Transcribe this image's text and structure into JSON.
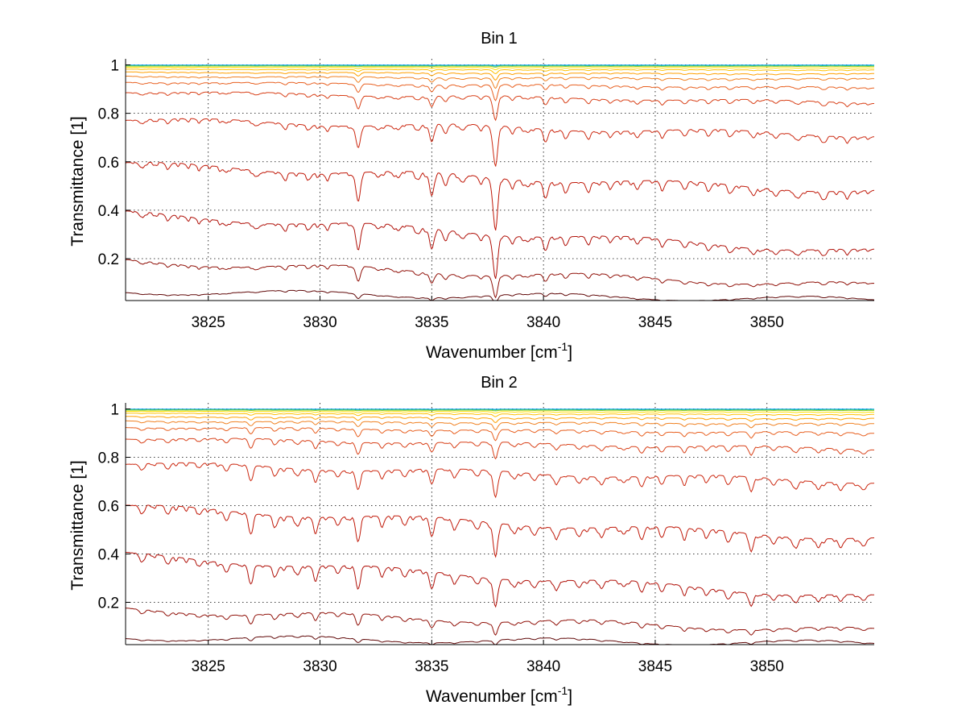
{
  "chart_data": [
    {
      "type": "line",
      "title": "Bin 1",
      "xlabel": "Wavenumber [cm",
      "xlabel_sup": "-1",
      "xlabel_close": "]",
      "ylabel": "Transmittance [1]",
      "xlim": [
        3821.3,
        3854.8
      ],
      "ylim": [
        0.027,
        1.025
      ],
      "xticks": [
        3825,
        3830,
        3835,
        3840,
        3845,
        3850
      ],
      "yticks": [
        0.2,
        0.4,
        0.6,
        0.8,
        1
      ],
      "xtick_labels": [
        "3825",
        "3830",
        "3835",
        "3840",
        "3845",
        "3850"
      ],
      "ytick_labels": [
        "0.2",
        "0.4",
        "0.6",
        "0.8",
        "1"
      ],
      "grid": true,
      "legend": "none",
      "dips": [
        {
          "x": 3822.0,
          "d": 0.06
        },
        {
          "x": 3823.2,
          "d": 0.07
        },
        {
          "x": 3824.6,
          "d": 0.05
        },
        {
          "x": 3825.8,
          "d": 0.06
        },
        {
          "x": 3827.2,
          "d": 0.07
        },
        {
          "x": 3828.4,
          "d": 0.06
        },
        {
          "x": 3829.5,
          "d": 0.08
        },
        {
          "x": 3830.3,
          "d": 0.06
        },
        {
          "x": 3831.7,
          "d": 0.35
        },
        {
          "x": 3832.6,
          "d": 0.07
        },
        {
          "x": 3833.5,
          "d": 0.08
        },
        {
          "x": 3834.4,
          "d": 0.1
        },
        {
          "x": 3835.0,
          "d": 0.3
        },
        {
          "x": 3835.6,
          "d": 0.15
        },
        {
          "x": 3836.4,
          "d": 0.1
        },
        {
          "x": 3837.2,
          "d": 0.08
        },
        {
          "x": 3837.85,
          "d": 0.7
        },
        {
          "x": 3838.6,
          "d": 0.1
        },
        {
          "x": 3839.3,
          "d": 0.08
        },
        {
          "x": 3840.1,
          "d": 0.22
        },
        {
          "x": 3841.0,
          "d": 0.12
        },
        {
          "x": 3842.0,
          "d": 0.1
        },
        {
          "x": 3843.0,
          "d": 0.09
        },
        {
          "x": 3844.2,
          "d": 0.12
        },
        {
          "x": 3845.3,
          "d": 0.1
        },
        {
          "x": 3846.3,
          "d": 0.1
        },
        {
          "x": 3847.4,
          "d": 0.11
        },
        {
          "x": 3848.4,
          "d": 0.1
        },
        {
          "x": 3849.4,
          "d": 0.12
        },
        {
          "x": 3850.4,
          "d": 0.1
        },
        {
          "x": 3851.4,
          "d": 0.11
        },
        {
          "x": 3852.5,
          "d": 0.12
        },
        {
          "x": 3853.6,
          "d": 0.1
        }
      ],
      "series": [
        {
          "color": "#00a0ff",
          "start": 0.999,
          "end": 0.999
        },
        {
          "color": "#20c0a0",
          "start": 0.997,
          "end": 0.997
        },
        {
          "color": "#a0d020",
          "start": 0.995,
          "end": 0.994
        },
        {
          "color": "#ffe000",
          "start": 0.99,
          "end": 0.988
        },
        {
          "color": "#ffc000",
          "start": 0.982,
          "end": 0.979
        },
        {
          "color": "#ffa000",
          "start": 0.97,
          "end": 0.963
        },
        {
          "color": "#f08020",
          "start": 0.953,
          "end": 0.942
        },
        {
          "color": "#e86020",
          "start": 0.93,
          "end": 0.905
        },
        {
          "color": "#d84018",
          "start": 0.89,
          "end": 0.845
        },
        {
          "color": "#cc2810",
          "start": 0.775,
          "end": 0.71
        },
        {
          "color": "#c01808",
          "start": 0.59,
          "end": 0.48
        },
        {
          "color": "#b01008",
          "start": 0.385,
          "end": 0.228
        },
        {
          "color": "#901008",
          "start": 0.19,
          "end": 0.088
        },
        {
          "color": "#600808",
          "start": 0.065,
          "end": 0.03
        }
      ]
    },
    {
      "type": "line",
      "title": "Bin 2",
      "xlabel": "Wavenumber [cm",
      "xlabel_sup": "-1",
      "xlabel_close": "]",
      "ylabel": "Transmittance [1]",
      "xlim": [
        3821.3,
        3854.8
      ],
      "ylim": [
        0.025,
        1.025
      ],
      "xticks": [
        3825,
        3830,
        3835,
        3840,
        3845,
        3850
      ],
      "yticks": [
        0.2,
        0.4,
        0.6,
        0.8,
        1
      ],
      "xtick_labels": [
        "3825",
        "3830",
        "3835",
        "3840",
        "3845",
        "3850"
      ],
      "ytick_labels": [
        "0.2",
        "0.4",
        "0.6",
        "0.8",
        "1"
      ],
      "grid": true,
      "legend": "none",
      "dips": [
        {
          "x": 3822.0,
          "d": 0.08
        },
        {
          "x": 3823.2,
          "d": 0.1
        },
        {
          "x": 3824.6,
          "d": 0.08
        },
        {
          "x": 3825.8,
          "d": 0.12
        },
        {
          "x": 3826.9,
          "d": 0.22
        },
        {
          "x": 3828.0,
          "d": 0.14
        },
        {
          "x": 3829.0,
          "d": 0.12
        },
        {
          "x": 3829.8,
          "d": 0.16
        },
        {
          "x": 3830.8,
          "d": 0.1
        },
        {
          "x": 3831.7,
          "d": 0.3
        },
        {
          "x": 3832.8,
          "d": 0.1
        },
        {
          "x": 3833.8,
          "d": 0.12
        },
        {
          "x": 3835.0,
          "d": 0.25
        },
        {
          "x": 3836.0,
          "d": 0.12
        },
        {
          "x": 3837.0,
          "d": 0.1
        },
        {
          "x": 3837.85,
          "d": 0.45
        },
        {
          "x": 3838.7,
          "d": 0.12
        },
        {
          "x": 3839.6,
          "d": 0.12
        },
        {
          "x": 3840.6,
          "d": 0.14
        },
        {
          "x": 3841.6,
          "d": 0.12
        },
        {
          "x": 3842.6,
          "d": 0.14
        },
        {
          "x": 3843.6,
          "d": 0.1
        },
        {
          "x": 3844.4,
          "d": 0.18
        },
        {
          "x": 3845.3,
          "d": 0.12
        },
        {
          "x": 3846.3,
          "d": 0.14
        },
        {
          "x": 3847.3,
          "d": 0.12
        },
        {
          "x": 3848.3,
          "d": 0.14
        },
        {
          "x": 3849.3,
          "d": 0.25
        },
        {
          "x": 3850.3,
          "d": 0.12
        },
        {
          "x": 3851.3,
          "d": 0.16
        },
        {
          "x": 3852.3,
          "d": 0.14
        },
        {
          "x": 3853.3,
          "d": 0.14
        },
        {
          "x": 3854.3,
          "d": 0.12
        }
      ],
      "series": [
        {
          "color": "#00a0ff",
          "start": 0.999,
          "end": 0.999
        },
        {
          "color": "#20c0a0",
          "start": 0.997,
          "end": 0.997
        },
        {
          "color": "#a0d020",
          "start": 0.995,
          "end": 0.994
        },
        {
          "color": "#ffe000",
          "start": 0.99,
          "end": 0.987
        },
        {
          "color": "#ffc000",
          "start": 0.982,
          "end": 0.977
        },
        {
          "color": "#ffa000",
          "start": 0.968,
          "end": 0.96
        },
        {
          "color": "#f08020",
          "start": 0.95,
          "end": 0.938
        },
        {
          "color": "#e86020",
          "start": 0.925,
          "end": 0.9
        },
        {
          "color": "#d84018",
          "start": 0.88,
          "end": 0.835
        },
        {
          "color": "#cc2810",
          "start": 0.775,
          "end": 0.7
        },
        {
          "color": "#c01808",
          "start": 0.595,
          "end": 0.465
        },
        {
          "color": "#b01008",
          "start": 0.395,
          "end": 0.22
        },
        {
          "color": "#901008",
          "start": 0.17,
          "end": 0.082
        },
        {
          "color": "#600808",
          "start": 0.055,
          "end": 0.03
        }
      ]
    }
  ]
}
